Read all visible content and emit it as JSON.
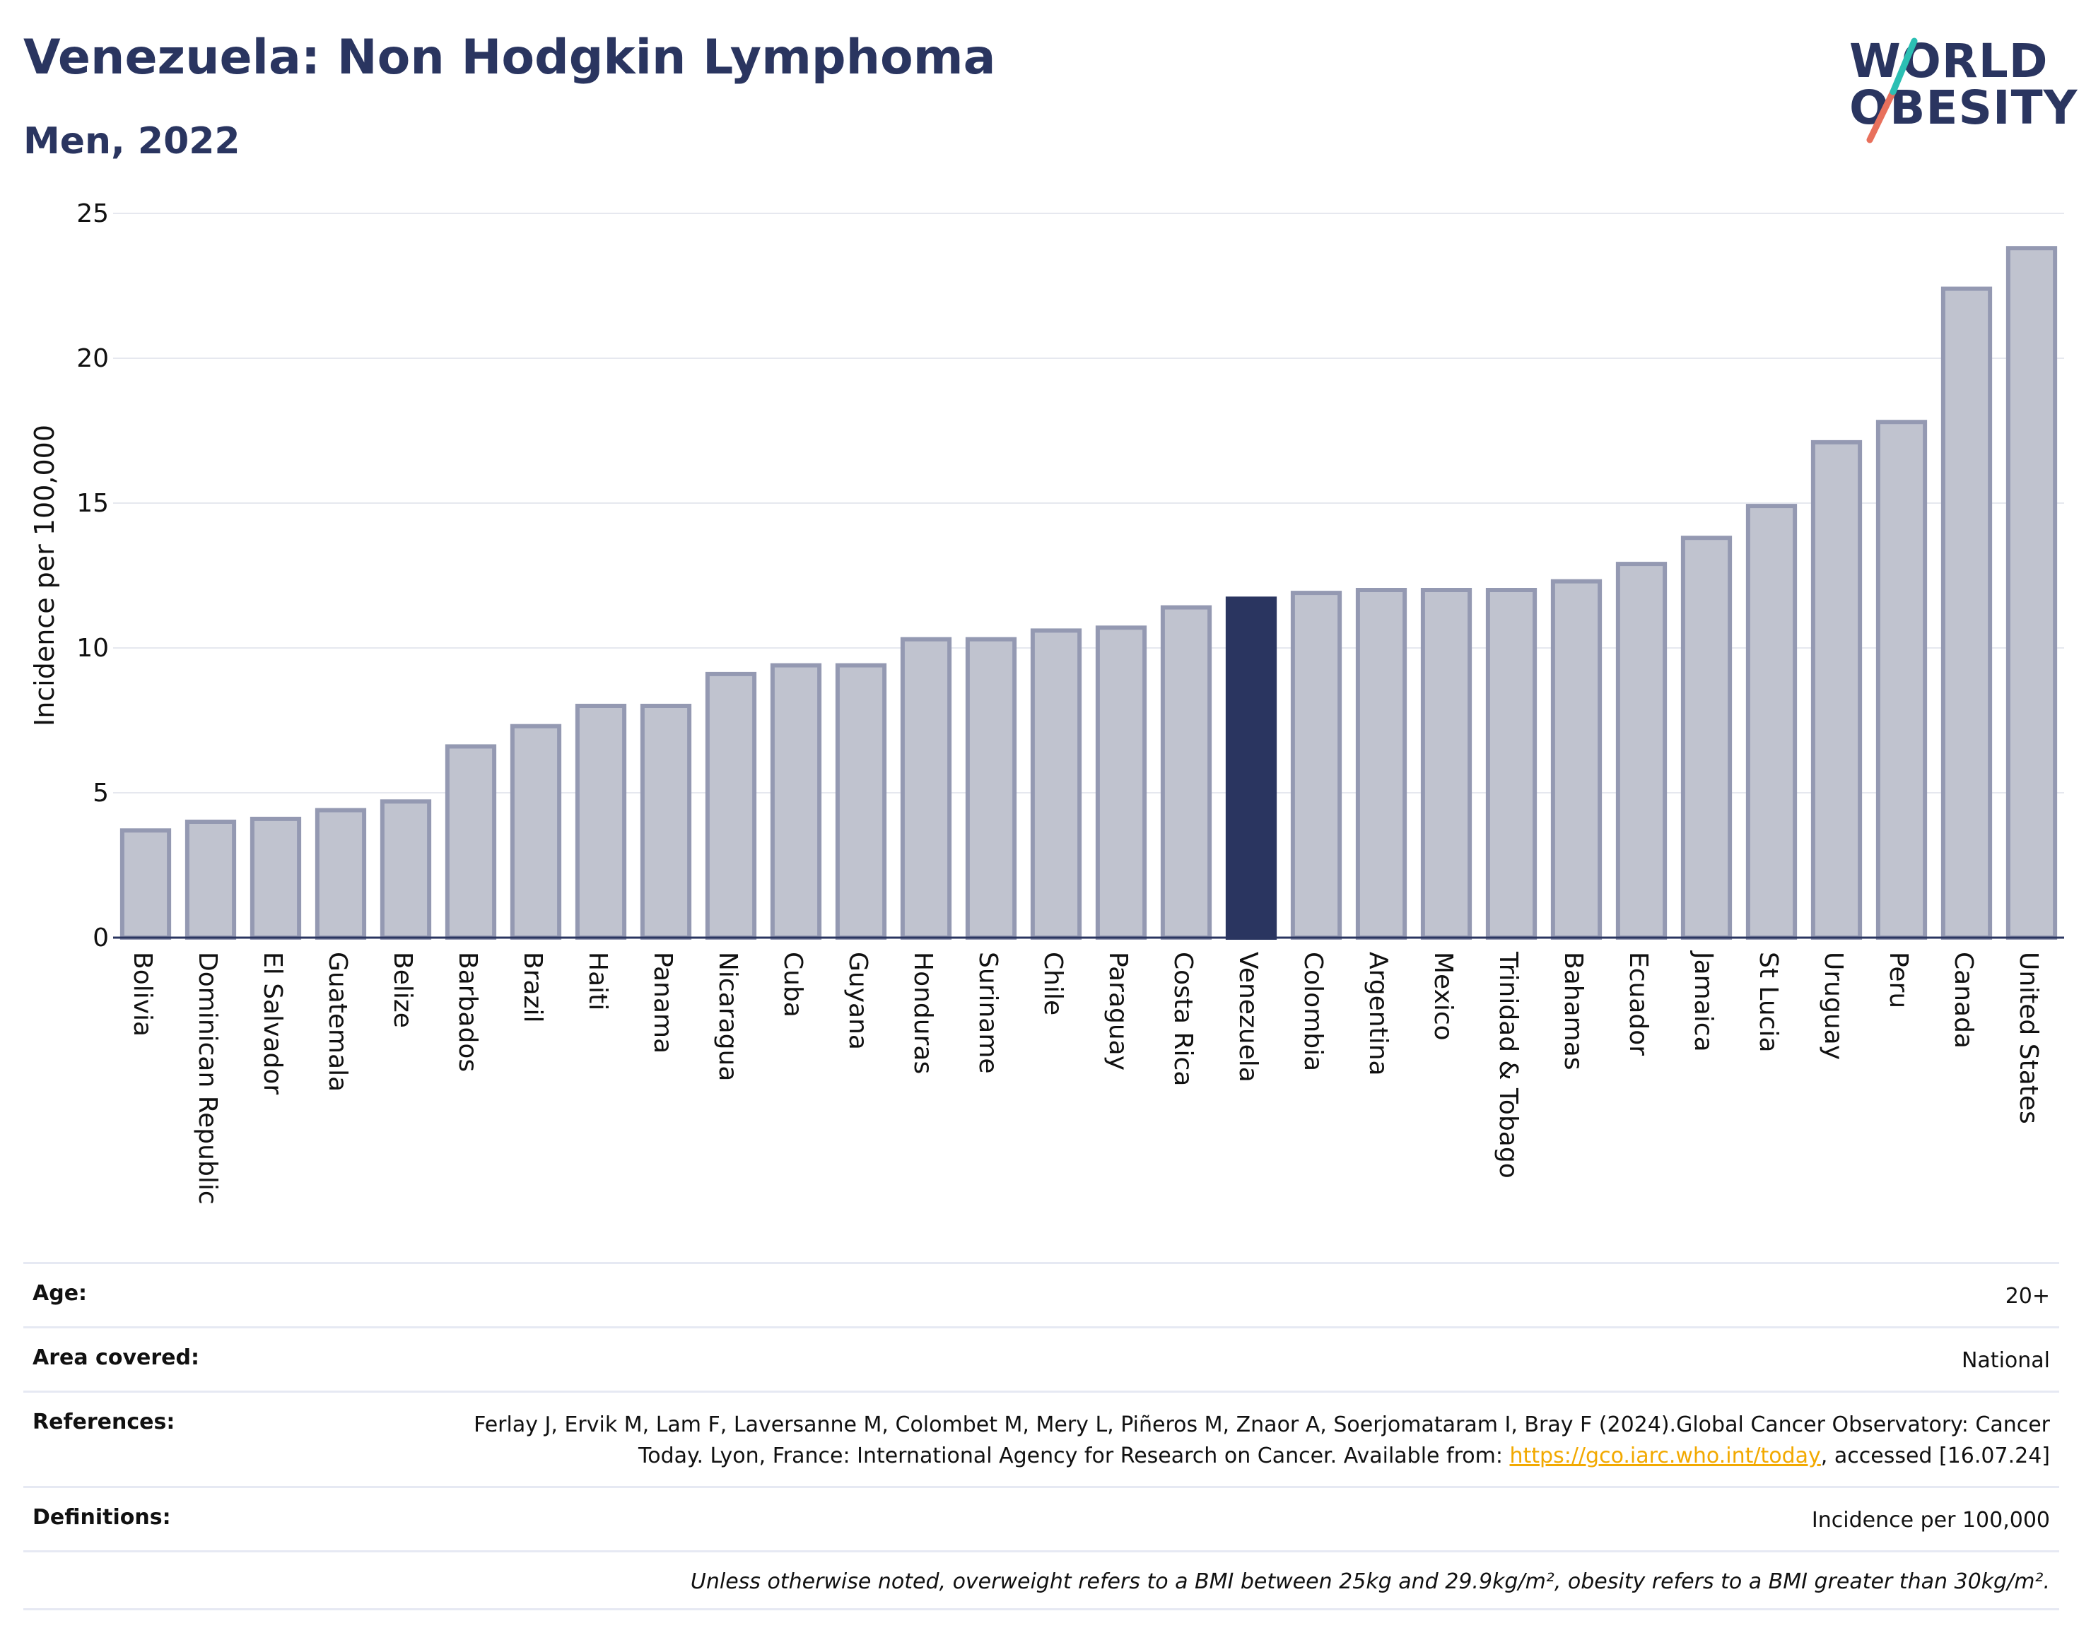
{
  "header": {
    "title": "Venezuela: Non Hodgkin Lymphoma",
    "subtitle": "Men, 2022"
  },
  "logo": {
    "line1": "WORLD",
    "line2": "OBESITY"
  },
  "colors": {
    "highlight": "#2a3560",
    "bar_fill": "#c0c3cf",
    "bar_stroke": "#9499b2",
    "grid": "#e6e8ef",
    "baseline": "#2a3560",
    "logo_teal": "#2bbfb3",
    "logo_coral": "#e8705c"
  },
  "chart_data": {
    "type": "bar",
    "title": "Venezuela: Non Hodgkin Lymphoma",
    "subtitle": "Men, 2022",
    "xlabel": "",
    "ylabel": "Incidence per 100,000",
    "ylim": [
      0,
      25
    ],
    "yticks": [
      0,
      5,
      10,
      15,
      20,
      25
    ],
    "grid": true,
    "highlight": "Venezuela",
    "categories": [
      "Bolivia",
      "Dominican Republic",
      "El Salvador",
      "Guatemala",
      "Belize",
      "Barbados",
      "Brazil",
      "Haiti",
      "Panama",
      "Nicaragua",
      "Cuba",
      "Guyana",
      "Honduras",
      "Suriname",
      "Chile",
      "Paraguay",
      "Costa Rica",
      "Venezuela",
      "Colombia",
      "Argentina",
      "Mexico",
      "Trinidad & Tobago",
      "Bahamas",
      "Ecuador",
      "Jamaica",
      "St Lucia",
      "Uruguay",
      "Peru",
      "Canada",
      "United States"
    ],
    "values": [
      3.7,
      4.0,
      4.1,
      4.4,
      4.7,
      6.6,
      7.3,
      8.0,
      8.0,
      9.1,
      9.4,
      9.4,
      10.3,
      10.3,
      10.6,
      10.7,
      11.4,
      11.7,
      11.9,
      12.0,
      12.0,
      12.0,
      12.3,
      12.9,
      13.8,
      14.9,
      17.1,
      17.8,
      22.4,
      23.8
    ]
  },
  "meta": {
    "age_label": "Age:",
    "age_value": "20+",
    "area_label": "Area covered:",
    "area_value": "National",
    "references_label": "References:",
    "references_text_1": "Ferlay J, Ervik M, Lam F, Laversanne M, Colombet M, Mery L, Piñeros M, Znaor A, Soerjomataram I, Bray F (2024).Global Cancer Observatory: Cancer Today. Lyon, France: International Agency for Research on Cancer. Available from: ",
    "references_link": "https://gco.iarc.who.int/today",
    "references_text_2": ", accessed [16.07.24]",
    "definitions_label": "Definitions:",
    "definitions_value": "Incidence per 100,000",
    "note": "Unless otherwise noted, overweight refers to a BMI between 25kg and 29.9kg/m², obesity refers to a BMI greater than 30kg/m²."
  }
}
